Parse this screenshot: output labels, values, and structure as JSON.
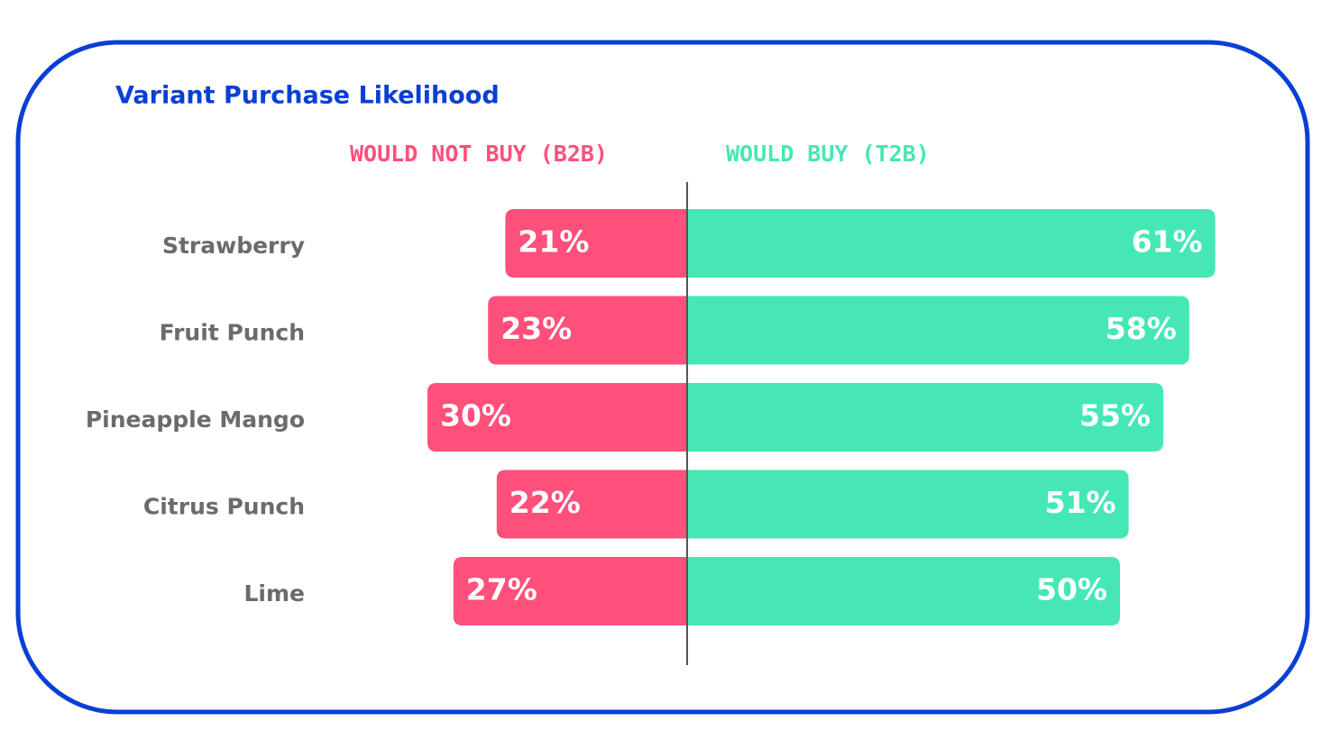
{
  "chart_data": {
    "type": "diverging-bar",
    "title": "Variant Purchase Likelihood",
    "categories": [
      "Strawberry",
      "Fruit Punch",
      "Pineapple Mango",
      "Citrus Punch",
      "Lime"
    ],
    "series": [
      {
        "name": "WOULD NOT BUY (B2B)",
        "color": "#ff4f7b",
        "values": [
          21,
          23,
          30,
          22,
          27
        ],
        "value_labels": [
          "21%",
          "23%",
          "30%",
          "22%",
          "27%"
        ]
      },
      {
        "name": "WOULD BUY (T2B)",
        "color": "#45e8b4",
        "values": [
          61,
          58,
          55,
          51,
          50
        ],
        "value_labels": [
          "61%",
          "58%",
          "55%",
          "51%",
          "50%"
        ]
      }
    ]
  }
}
